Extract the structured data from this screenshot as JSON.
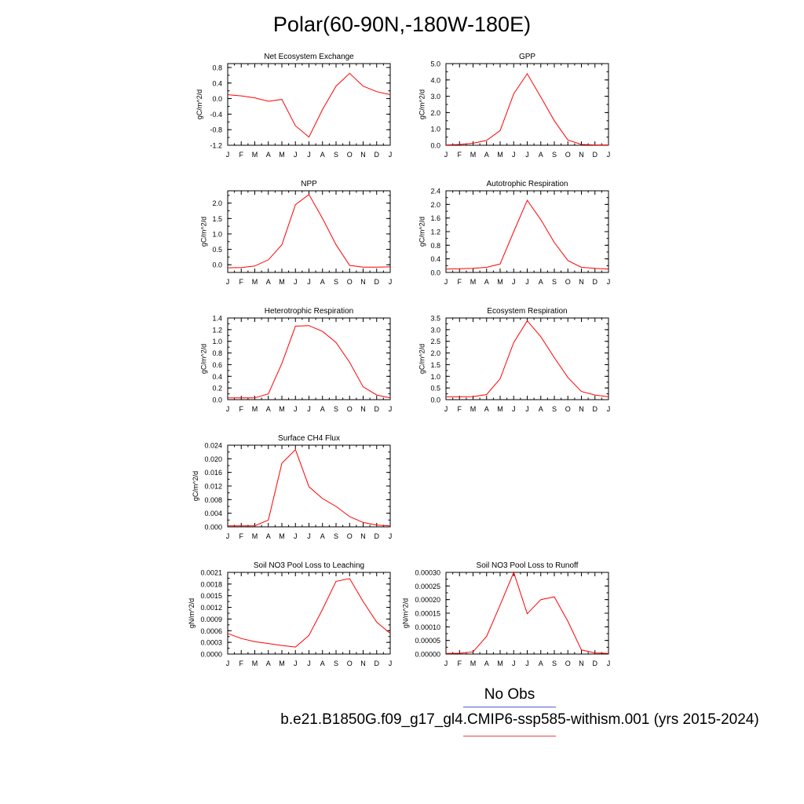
{
  "page_title": "Polar(60-90N,-180W-180E)",
  "legend": {
    "obs_label": "No Obs",
    "case_label": "b.e21.B1850G.f09_g17_gl4.CMIP6-ssp585-withism.001 (yrs 2015-2024)",
    "obs_color": "#4e5cd6",
    "case_color": "#e8434a"
  },
  "series_color": "#ff0000",
  "chart_data": [
    {
      "type": "line",
      "title": "Net Ecosystem Exchange",
      "ylabel": "gC/m^2/d",
      "x": [
        "J",
        "F",
        "M",
        "A",
        "M",
        "J",
        "J",
        "A",
        "S",
        "O",
        "N",
        "D",
        "J"
      ],
      "ylim": [
        -1.2,
        0.9
      ],
      "yticks": [
        "0.8",
        "0.4",
        "0.0",
        "-0.4",
        "-0.8",
        "-1.2"
      ],
      "ytick_values": [
        0.8,
        0.4,
        0.0,
        -0.4,
        -0.8,
        -1.2
      ],
      "values": [
        0.1,
        0.07,
        0.02,
        -0.07,
        -0.02,
        -0.7,
        -0.99,
        -0.28,
        0.32,
        0.65,
        0.32,
        0.18,
        0.1
      ]
    },
    {
      "type": "line",
      "title": "GPP",
      "ylabel": "gC/m^2/d",
      "x": [
        "J",
        "F",
        "M",
        "A",
        "M",
        "J",
        "J",
        "A",
        "S",
        "O",
        "N",
        "D",
        "J"
      ],
      "ylim": [
        0,
        5
      ],
      "yticks": [
        "5.0",
        "4.0",
        "3.0",
        "2.0",
        "1.0",
        "0.0"
      ],
      "ytick_values": [
        5,
        4,
        3,
        2,
        1,
        0
      ],
      "values": [
        0.02,
        0.05,
        0.12,
        0.3,
        0.9,
        3.15,
        4.38,
        2.95,
        1.5,
        0.32,
        0.05,
        0.02,
        0.02
      ]
    },
    {
      "type": "line",
      "title": "NPP",
      "ylabel": "gC/m^2/d",
      "x": [
        "J",
        "F",
        "M",
        "A",
        "M",
        "J",
        "J",
        "A",
        "S",
        "O",
        "N",
        "D",
        "J"
      ],
      "ylim": [
        -0.25,
        2.4
      ],
      "yticks": [
        "2.0",
        "1.5",
        "1.0",
        "0.5",
        "0.0"
      ],
      "ytick_values": [
        2,
        1.5,
        1,
        0.5,
        0
      ],
      "values": [
        -0.1,
        -0.09,
        -0.04,
        0.16,
        0.65,
        1.95,
        2.28,
        1.5,
        0.65,
        -0.02,
        -0.08,
        -0.08,
        -0.07
      ]
    },
    {
      "type": "line",
      "title": "Autotrophic Respiration",
      "ylabel": "gC/m^2/d",
      "x": [
        "J",
        "F",
        "M",
        "A",
        "M",
        "J",
        "J",
        "A",
        "S",
        "O",
        "N",
        "D",
        "J"
      ],
      "ylim": [
        0,
        2.4
      ],
      "yticks": [
        "2.4",
        "2.0",
        "1.6",
        "1.2",
        "0.8",
        "0.4",
        "0.0"
      ],
      "ytick_values": [
        2.4,
        2.0,
        1.6,
        1.2,
        0.8,
        0.4,
        0.0
      ],
      "values": [
        0.1,
        0.11,
        0.12,
        0.15,
        0.25,
        1.2,
        2.12,
        1.55,
        0.88,
        0.35,
        0.15,
        0.12,
        0.1
      ]
    },
    {
      "type": "line",
      "title": "Heterotrophic Respiration",
      "ylabel": "gC/m^2/d",
      "x": [
        "J",
        "F",
        "M",
        "A",
        "M",
        "J",
        "J",
        "A",
        "S",
        "O",
        "N",
        "D",
        "J"
      ],
      "ylim": [
        0,
        1.4
      ],
      "yticks": [
        "1.4",
        "1.2",
        "1.0",
        "0.8",
        "0.6",
        "0.4",
        "0.2",
        "0.0"
      ],
      "ytick_values": [
        1.4,
        1.2,
        1.0,
        0.8,
        0.6,
        0.4,
        0.2,
        0.0
      ],
      "values": [
        0.03,
        0.03,
        0.03,
        0.1,
        0.62,
        1.26,
        1.27,
        1.17,
        0.98,
        0.64,
        0.22,
        0.08,
        0.03
      ]
    },
    {
      "type": "line",
      "title": "Ecosystem Respiration",
      "ylabel": "gC/m^2/d",
      "x": [
        "J",
        "F",
        "M",
        "A",
        "M",
        "J",
        "J",
        "A",
        "S",
        "O",
        "N",
        "D",
        "J"
      ],
      "ylim": [
        0,
        3.5
      ],
      "yticks": [
        "3.5",
        "3.0",
        "2.5",
        "2.0",
        "1.5",
        "1.0",
        "0.5",
        "0.0"
      ],
      "ytick_values": [
        3.5,
        3.0,
        2.5,
        2.0,
        1.5,
        1.0,
        0.5,
        0.0
      ],
      "values": [
        0.12,
        0.12,
        0.13,
        0.22,
        0.9,
        2.45,
        3.38,
        2.7,
        1.8,
        0.95,
        0.35,
        0.2,
        0.12
      ]
    },
    {
      "type": "line",
      "title": "Surface CH4 Flux",
      "ylabel": "gC/m^2/d",
      "x": [
        "J",
        "F",
        "M",
        "A",
        "M",
        "J",
        "J",
        "A",
        "S",
        "O",
        "N",
        "D",
        "J"
      ],
      "ylim": [
        0,
        0.024
      ],
      "yticks": [
        "0.024",
        "0.020",
        "0.016",
        "0.012",
        "0.008",
        "0.004",
        "0.000"
      ],
      "ytick_values": [
        0.024,
        0.02,
        0.016,
        0.012,
        0.008,
        0.004,
        0.0
      ],
      "values": [
        0.0003,
        0.0003,
        0.0003,
        0.002,
        0.0187,
        0.0227,
        0.0118,
        0.0083,
        0.006,
        0.003,
        0.0013,
        0.0005,
        0.0003
      ]
    },
    {
      "type": "line",
      "title": "Soil NO3 Pool Loss to Leaching",
      "ylabel": "gN/m^2/d",
      "x": [
        "J",
        "F",
        "M",
        "A",
        "M",
        "J",
        "J",
        "A",
        "S",
        "O",
        "N",
        "D",
        "J"
      ],
      "ylim": [
        0,
        0.0021
      ],
      "yticks": [
        "0.0021",
        "0.0018",
        "0.0015",
        "0.0012",
        "0.0009",
        "0.0006",
        "0.0003",
        "0.0000"
      ],
      "ytick_values": [
        0.0021,
        0.0018,
        0.0015,
        0.0012,
        0.0009,
        0.0006,
        0.0003,
        0.0
      ],
      "values": [
        0.00053,
        0.0004,
        0.00032,
        0.00027,
        0.00022,
        0.00018,
        0.00048,
        0.00115,
        0.00187,
        0.00194,
        0.00135,
        0.00082,
        0.00053
      ]
    },
    {
      "type": "line",
      "title": "Soil NO3 Pool Loss to Runoff",
      "ylabel": "gN/m^2/d",
      "x": [
        "J",
        "F",
        "M",
        "A",
        "M",
        "J",
        "J",
        "A",
        "S",
        "O",
        "N",
        "D",
        "J"
      ],
      "ylim": [
        0,
        0.0003
      ],
      "yticks": [
        "0.00030",
        "0.00025",
        "0.00020",
        "0.00015",
        "0.00010",
        "0.00005",
        "0.00000"
      ],
      "ytick_values": [
        0.0003,
        0.00025,
        0.0002,
        0.00015,
        0.0001,
        5e-05,
        0.0
      ],
      "values": [
        2e-06,
        3e-06,
        8e-06,
        6.5e-05,
        0.00018,
        0.0003,
        0.000148,
        0.0002,
        0.00021,
        0.00012,
        1.5e-05,
        4e-06,
        2e-06
      ]
    }
  ]
}
